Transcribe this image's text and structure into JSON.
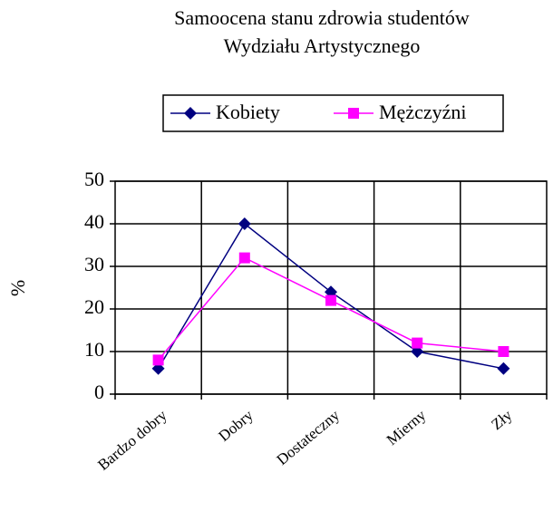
{
  "chart_data": {
    "type": "line",
    "title": "Samoocena stanu zdrowia studentów",
    "subtitle": "Wydziału Artystycznego",
    "y_label": "%",
    "categories": [
      "Bardzo dobry",
      "Dobry",
      "Dostateczny",
      "Mierny",
      "Zły"
    ],
    "series": [
      {
        "name": "Kobiety",
        "color": "#000080",
        "marker": "diamond",
        "values": [
          6,
          40,
          24,
          10,
          6
        ]
      },
      {
        "name": "Mężczyźni",
        "color": "#ff00ff",
        "marker": "square",
        "values": [
          8,
          32,
          22,
          12,
          10
        ]
      }
    ],
    "ylim": [
      0,
      50
    ],
    "yticks": [
      0,
      10,
      20,
      30,
      40,
      50
    ],
    "grid": true,
    "legend": "top"
  }
}
